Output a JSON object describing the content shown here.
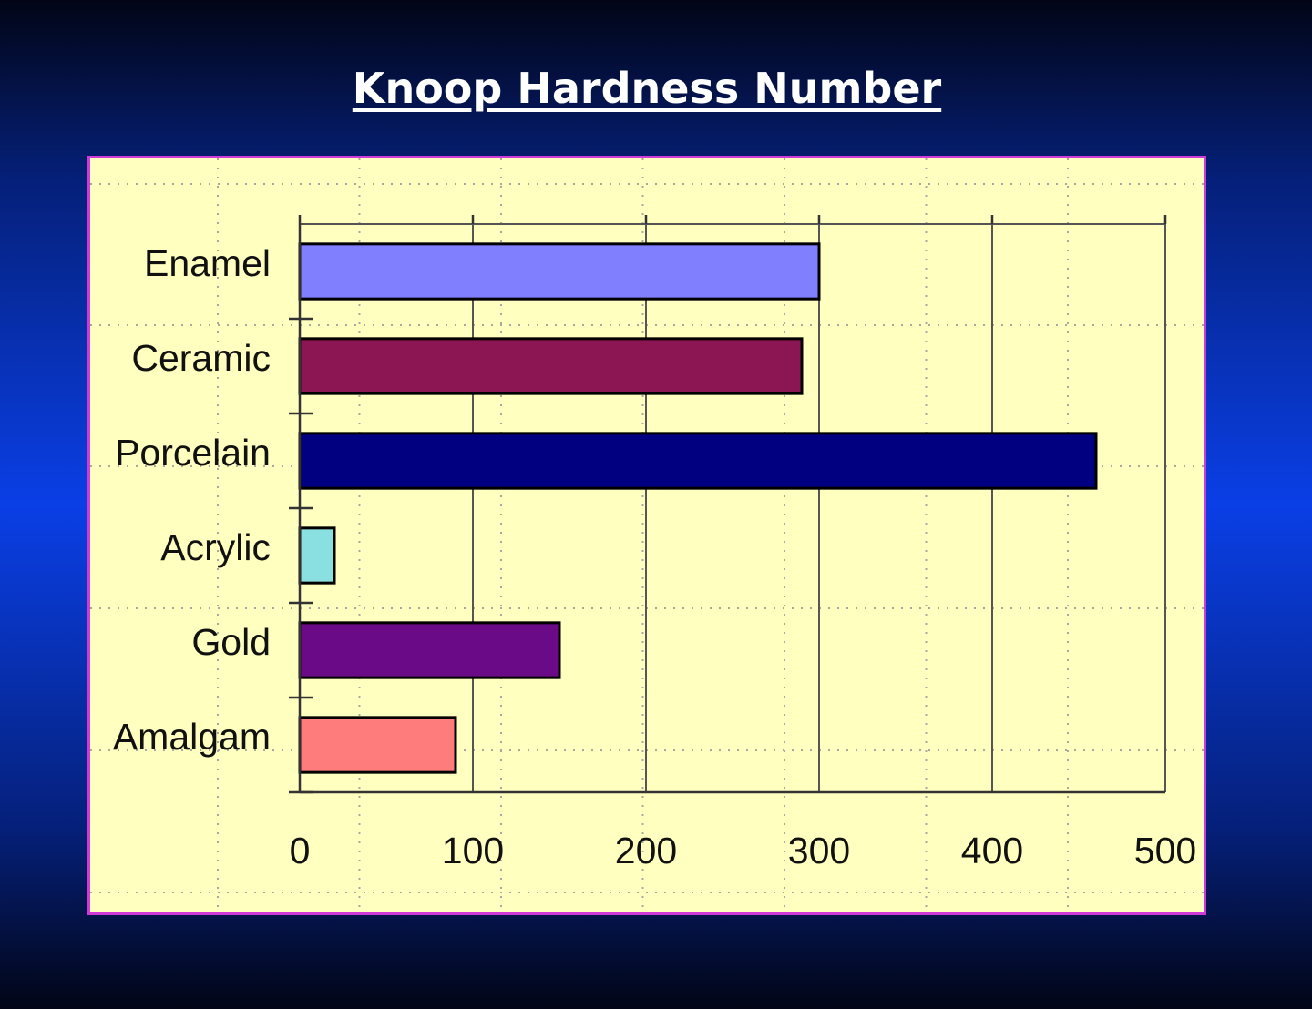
{
  "slide": {
    "title": "Knoop Hardness Number"
  },
  "chart_data": {
    "type": "bar",
    "orientation": "horizontal",
    "title": "Knoop Hardness Number",
    "categories": [
      "Enamel",
      "Ceramic",
      "Porcelain",
      "Acrylic",
      "Gold",
      "Amalgam"
    ],
    "values": [
      300,
      290,
      460,
      20,
      150,
      90
    ],
    "colors": [
      "#8080ff",
      "#8b1653",
      "#000080",
      "#8adfe0",
      "#6a0a86",
      "#ff7c7c"
    ],
    "xlim": [
      0,
      500
    ],
    "xticks": [
      0,
      100,
      200,
      300,
      400,
      500
    ],
    "xlabel": "",
    "ylabel": "",
    "grid": "on",
    "legend": "none"
  }
}
